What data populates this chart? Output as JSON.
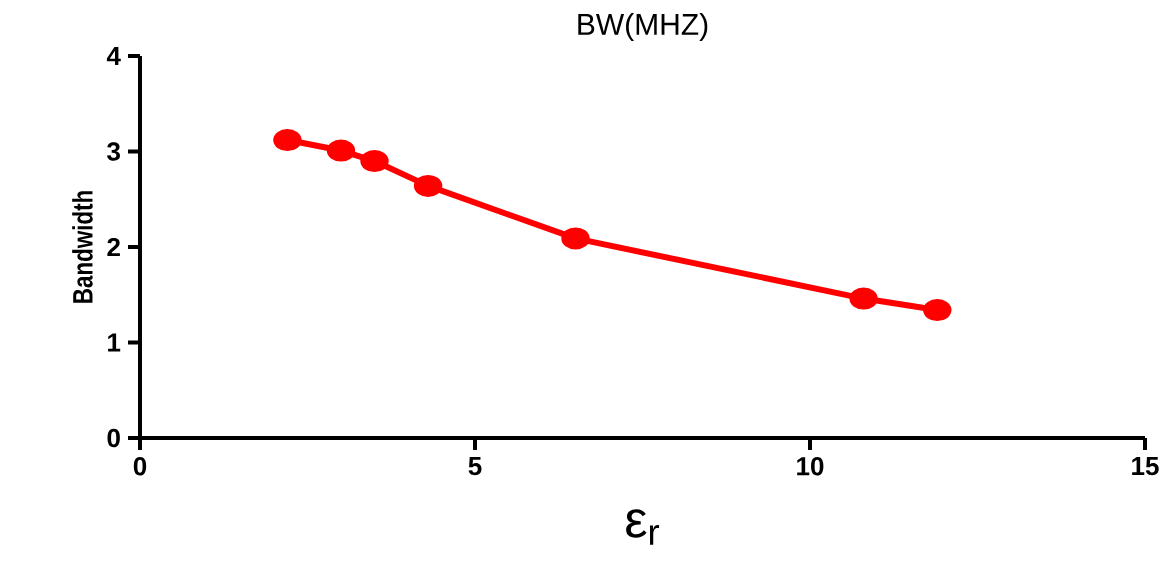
{
  "chart_data": {
    "type": "line",
    "title": "BW(MHZ)",
    "xlabel": "ε$_{r}$",
    "ylabel": "Bandwidth",
    "x": [
      2.2,
      3.0,
      3.5,
      4.3,
      6.5,
      10.8,
      11.9
    ],
    "series": [
      {
        "color": "#ff0000",
        "values": [
          3.12,
          3.01,
          2.9,
          2.64,
          2.09,
          1.46,
          1.34
        ]
      }
    ],
    "xlim": [
      0,
      15
    ],
    "xticks": [
      0,
      5,
      10,
      15
    ],
    "ylim": [
      0,
      4
    ],
    "yticks": [
      0,
      1,
      2,
      3,
      4
    ],
    "marker": "circle",
    "line_style": "solid"
  }
}
